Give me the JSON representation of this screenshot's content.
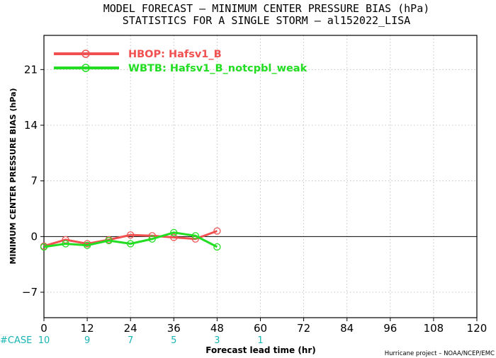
{
  "header": {
    "title_line1": "MODEL FORECAST – MINIMUM CENTER PRESSURE BIAS (hPa)",
    "title_line2": "STATISTICS FOR A SINGLE STORM – al152022_LISA"
  },
  "footer": {
    "case_label": "#CASE",
    "credit": "Hurricane project – NOAA/NCEP/EMC"
  },
  "chart_data": {
    "type": "line",
    "title": "MODEL FORECAST – MINIMUM CENTER PRESSURE BIAS (hPa)",
    "subtitle": "STATISTICS FOR A SINGLE STORM – al152022_LISA",
    "xlabel": "Forecast lead time (hr)",
    "ylabel": "MINIMUM CENTER PRESSURE BIAS (hPa)",
    "xlim": [
      0,
      120
    ],
    "ylim": [
      -10.2,
      25.3
    ],
    "x_ticks": [
      0,
      12,
      24,
      36,
      48,
      60,
      72,
      84,
      96,
      108,
      120
    ],
    "y_ticks": [
      -7,
      0,
      7,
      14,
      21
    ],
    "grid": true,
    "legend_position": "top-left",
    "case_counts": [
      {
        "x": 0,
        "label": "10"
      },
      {
        "x": 12,
        "label": "9"
      },
      {
        "x": 24,
        "label": "7"
      },
      {
        "x": 36,
        "label": "5"
      },
      {
        "x": 48,
        "label": "3"
      },
      {
        "x": 60,
        "label": "1"
      }
    ],
    "series": [
      {
        "name": "HBOP: Hafsv1_B",
        "color": "#f05050",
        "x": [
          0,
          6,
          12,
          18,
          24,
          30,
          36,
          42,
          48
        ],
        "y": [
          -1.2,
          -0.4,
          -0.9,
          -0.4,
          0.2,
          0.1,
          -0.1,
          -0.3,
          0.7
        ]
      },
      {
        "name": "WBTB: Hafsv1_B_notcpbl_weak",
        "color": "#22dd22",
        "x": [
          0,
          6,
          12,
          18,
          24,
          30,
          36,
          42,
          48
        ],
        "y": [
          -1.3,
          -0.9,
          -1.1,
          -0.5,
          -0.9,
          -0.3,
          0.5,
          0.1,
          -1.3
        ]
      }
    ]
  }
}
